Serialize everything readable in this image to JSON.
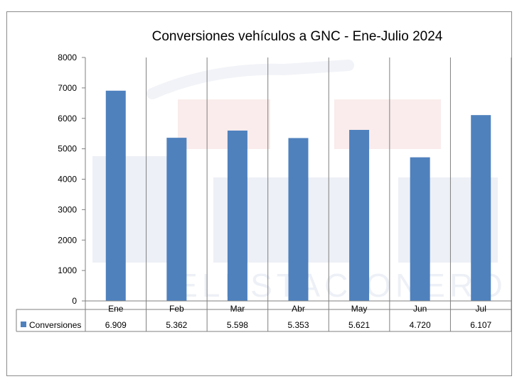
{
  "chart_data": {
    "type": "bar",
    "title": "Conversiones vehículos a GNC - Ene-Julio 2024",
    "categories": [
      "Ene",
      "Feb",
      "Mar",
      "Abr",
      "May",
      "Jun",
      "Jul"
    ],
    "series": [
      {
        "name": "Conversiones",
        "values": [
          6909,
          5362,
          5598,
          5353,
          5621,
          4720,
          6107
        ],
        "data_labels": [
          "6.909",
          "5.362",
          "5.598",
          "5.353",
          "5.621",
          "4.720",
          "6.107"
        ]
      }
    ],
    "ylim": [
      0,
      8000
    ],
    "yticks": [
      0,
      1000,
      2000,
      3000,
      4000,
      5000,
      6000,
      7000,
      8000
    ],
    "xlabel": "",
    "ylabel": "",
    "data_table": true,
    "legend": "data-table-left",
    "colors": {
      "bar": "#4f81bd",
      "grid": "#7f7f7f"
    },
    "watermark": "ELESTACIONERO"
  }
}
